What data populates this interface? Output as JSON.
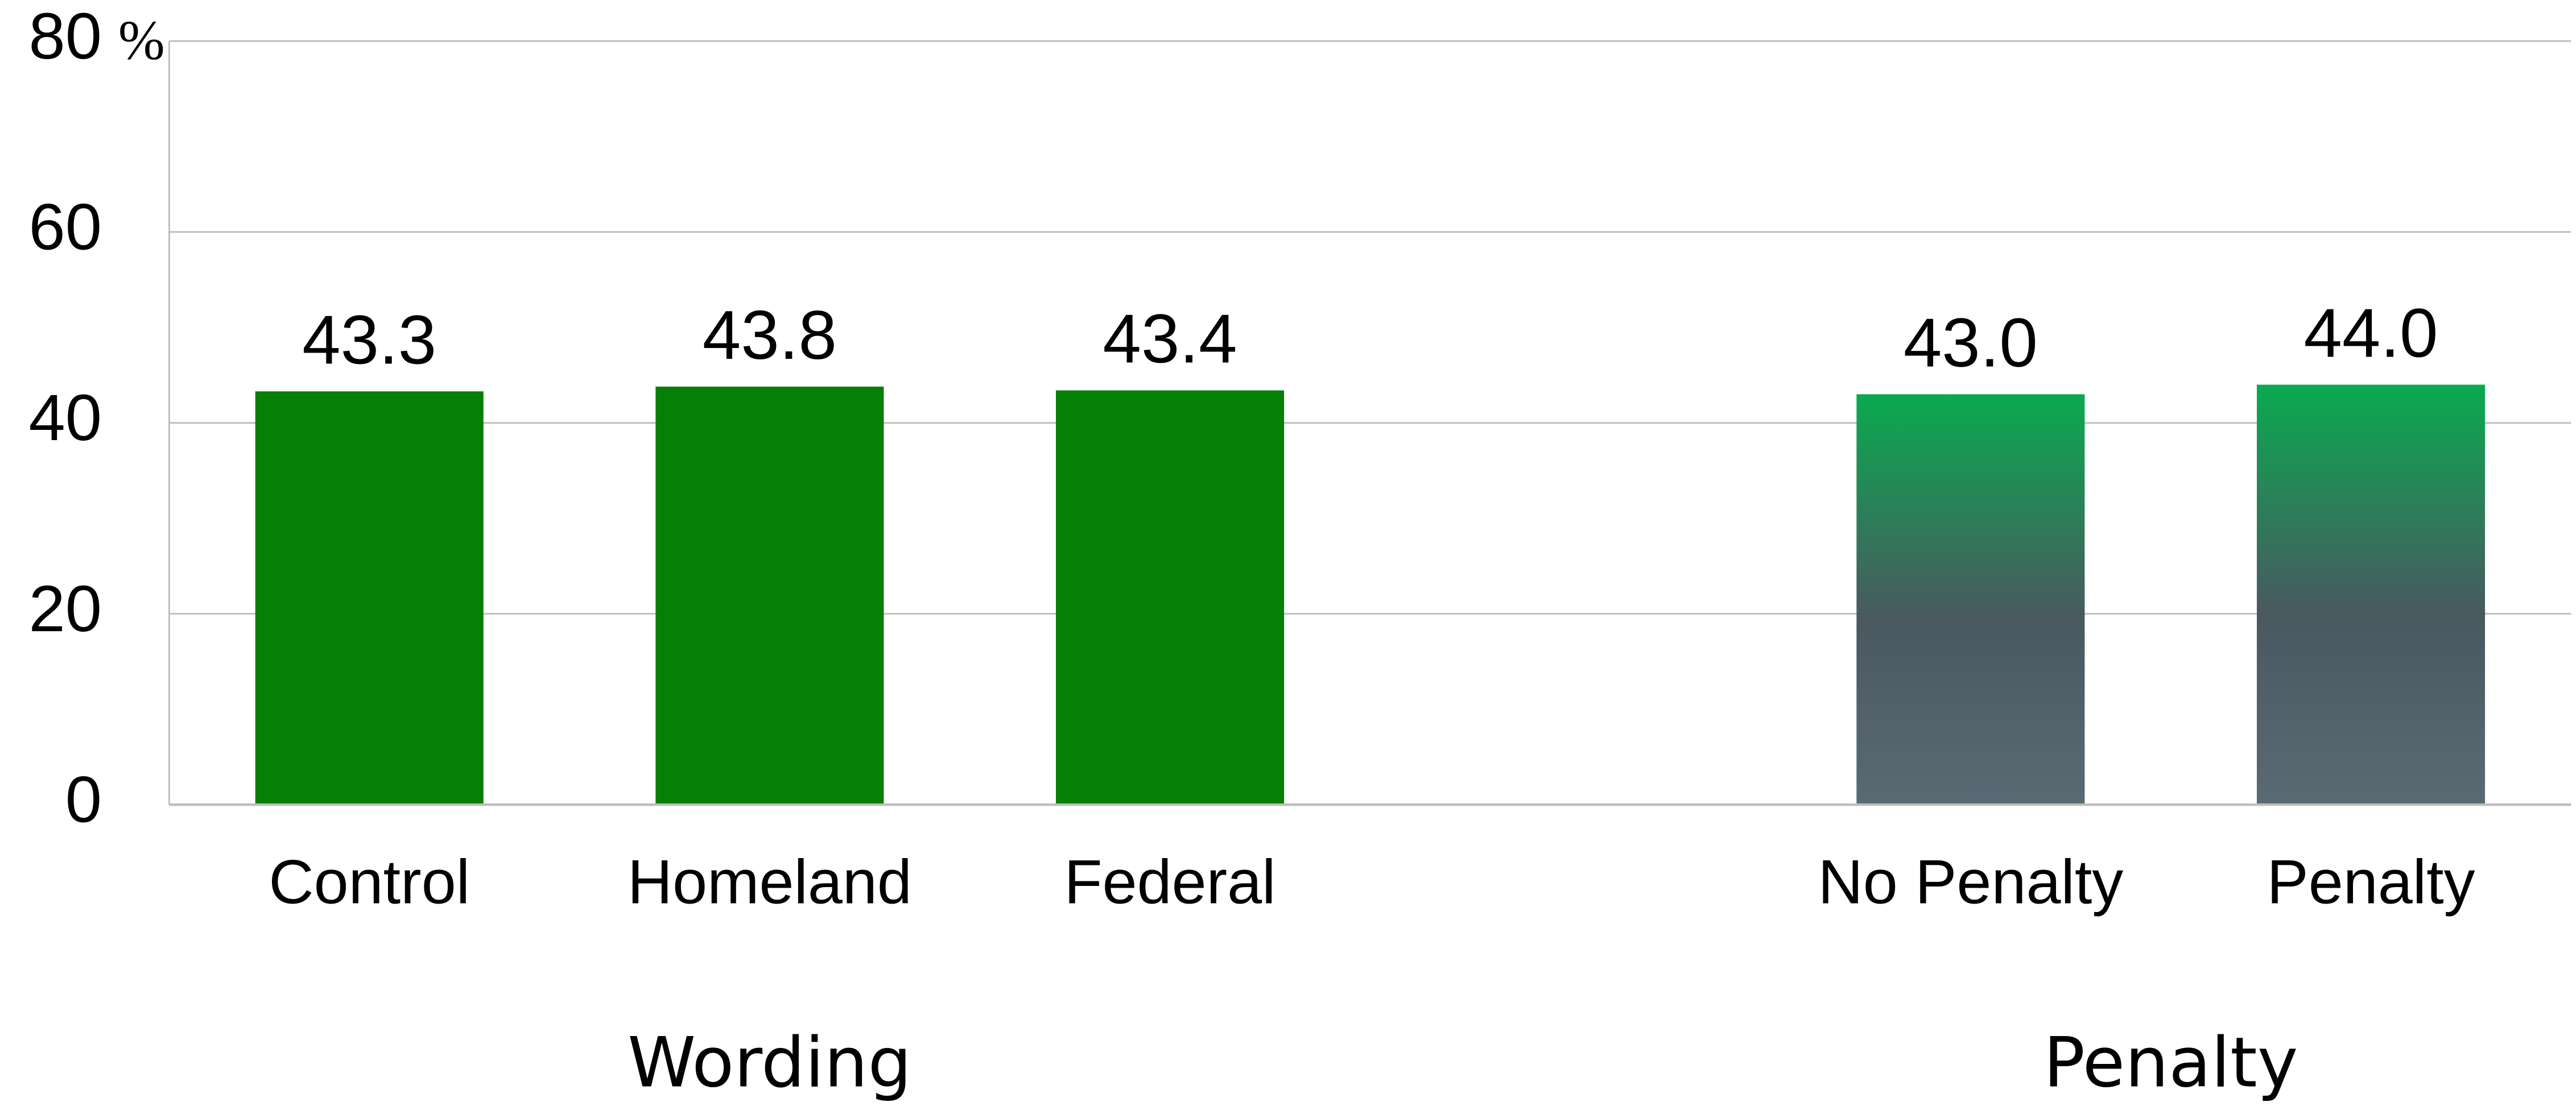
{
  "chart_data": {
    "type": "bar",
    "y_unit": "%",
    "ylim": [
      0,
      80
    ],
    "yticks": [
      0,
      20,
      40,
      60,
      80
    ],
    "grid": true,
    "groups": [
      {
        "name": "Wording",
        "categories": [
          "Control",
          "Homeland",
          "Federal"
        ],
        "values": [
          43.3,
          43.8,
          43.4
        ],
        "color": "#067f06"
      },
      {
        "name": "Penalty",
        "categories": [
          "No Penalty",
          "Penalty"
        ],
        "values": [
          43.0,
          44.0
        ],
        "value_labels": [
          "43.0",
          "44.0"
        ],
        "gradient": [
          "#0aaa50",
          "#4a5860",
          "#5a6a74"
        ]
      }
    ]
  }
}
